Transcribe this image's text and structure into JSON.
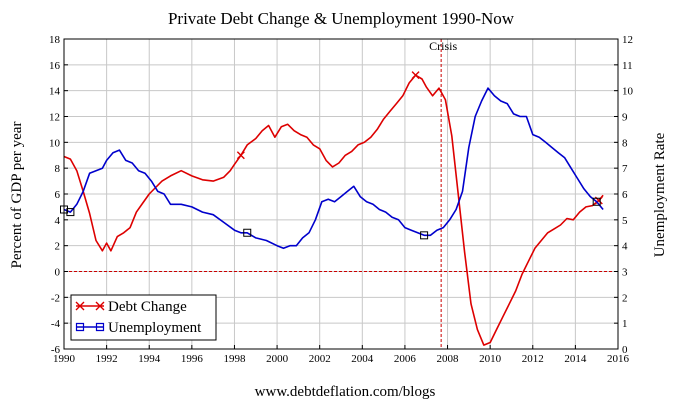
{
  "chart_data": {
    "type": "line",
    "title": "Private Debt Change & Unemployment 1990-Now",
    "footer": "www.debtdeflation.com/blogs",
    "left_axis": {
      "label": "Percent of GDP per year",
      "range": [
        -6,
        18
      ],
      "ticks": [
        "-6",
        "-4",
        "-2",
        "0",
        "2",
        "4",
        "6",
        "8",
        "10",
        "12",
        "14",
        "16",
        "18"
      ]
    },
    "right_axis": {
      "label": "Unemployment Rate",
      "range": [
        0,
        12
      ],
      "ticks": [
        "0",
        "1",
        "2",
        "3",
        "4",
        "5",
        "6",
        "7",
        "8",
        "9",
        "10",
        "11",
        "12"
      ]
    },
    "x_axis": {
      "range": [
        1990,
        2016
      ],
      "ticks": [
        "1990",
        "1992",
        "1994",
        "1996",
        "1998",
        "2000",
        "2002",
        "2004",
        "2006",
        "2008",
        "2010",
        "2012",
        "2014",
        "2016"
      ]
    },
    "grid": true,
    "zero_line_left": 0,
    "annotation": {
      "label": "Crisis",
      "x": 2007.7
    },
    "legend": {
      "placement": "bottom-left",
      "entries": [
        "Debt Change",
        "Unemployment"
      ]
    },
    "series": [
      {
        "name": "Debt Change",
        "axis": "left",
        "color": "#dd0000",
        "marker": "cross",
        "x": [
          1990,
          1990.3,
          1990.6,
          1990.9,
          1991.2,
          1991.5,
          1991.8,
          1992.0,
          1992.2,
          1992.5,
          1992.8,
          1993.1,
          1993.4,
          1993.7,
          1994.0,
          1994.3,
          1994.6,
          1995.0,
          1995.5,
          1996.0,
          1996.5,
          1997.0,
          1997.5,
          1997.8,
          1998.0,
          1998.3,
          1998.6,
          1999.0,
          1999.3,
          1999.6,
          1999.9,
          2000.2,
          2000.5,
          2000.8,
          2001.1,
          2001.4,
          2001.7,
          2002.0,
          2002.3,
          2002.6,
          2002.9,
          2003.2,
          2003.5,
          2003.8,
          2004.1,
          2004.4,
          2004.7,
          2005.0,
          2005.3,
          2005.6,
          2005.9,
          2006.2,
          2006.5,
          2006.8,
          2007.0,
          2007.3,
          2007.6,
          2007.9,
          2008.2,
          2008.5,
          2008.8,
          2009.1,
          2009.4,
          2009.7,
          2010.0,
          2010.3,
          2010.6,
          2010.9,
          2011.2,
          2011.5,
          2011.8,
          2012.1,
          2012.4,
          2012.7,
          2013.0,
          2013.3,
          2013.6,
          2013.9,
          2014.2,
          2014.5,
          2014.8,
          2015.1,
          2015.3
        ],
        "values": [
          8.9,
          8.7,
          7.8,
          6.2,
          4.5,
          2.4,
          1.6,
          2.2,
          1.6,
          2.7,
          3.0,
          3.4,
          4.6,
          5.3,
          6.0,
          6.5,
          7.0,
          7.4,
          7.8,
          7.4,
          7.1,
          7.0,
          7.3,
          7.8,
          8.3,
          9.0,
          9.8,
          10.3,
          10.9,
          11.3,
          10.4,
          11.2,
          11.4,
          10.9,
          10.6,
          10.4,
          9.8,
          9.5,
          8.6,
          8.1,
          8.4,
          9.0,
          9.3,
          9.8,
          10.0,
          10.4,
          11.0,
          11.8,
          12.4,
          13.0,
          13.6,
          14.6,
          15.2,
          14.9,
          14.3,
          13.6,
          14.2,
          13.3,
          10.5,
          6.0,
          1.5,
          -2.5,
          -4.5,
          -5.7,
          -5.5,
          -4.5,
          -3.5,
          -2.5,
          -1.5,
          -0.2,
          0.8,
          1.8,
          2.4,
          3.0,
          3.3,
          3.6,
          4.1,
          4.0,
          4.6,
          5.0,
          5.1,
          5.5,
          5.9
        ]
      },
      {
        "name": "Unemployment",
        "axis": "right",
        "color": "#0000cc",
        "marker": "square",
        "x": [
          1990,
          1990.3,
          1990.6,
          1990.9,
          1991.2,
          1991.5,
          1991.8,
          1992.0,
          1992.3,
          1992.6,
          1992.9,
          1993.2,
          1993.5,
          1993.8,
          1994.1,
          1994.4,
          1994.7,
          1995.0,
          1995.5,
          1996.0,
          1996.5,
          1997.0,
          1997.5,
          1998.0,
          1998.3,
          1998.6,
          1999.0,
          1999.5,
          2000.0,
          2000.3,
          2000.6,
          2000.9,
          2001.2,
          2001.5,
          2001.8,
          2002.1,
          2002.4,
          2002.7,
          2003.0,
          2003.3,
          2003.6,
          2003.9,
          2004.2,
          2004.5,
          2004.8,
          2005.1,
          2005.4,
          2005.7,
          2006.0,
          2006.3,
          2006.6,
          2006.9,
          2007.2,
          2007.5,
          2007.8,
          2008.1,
          2008.4,
          2008.7,
          2009.0,
          2009.3,
          2009.6,
          2009.9,
          2010.2,
          2010.5,
          2010.8,
          2011.1,
          2011.4,
          2011.7,
          2012.0,
          2012.3,
          2012.6,
          2012.9,
          2013.2,
          2013.5,
          2013.8,
          2014.1,
          2014.4,
          2014.7,
          2015.0,
          2015.3
        ],
        "values": [
          5.4,
          5.3,
          5.6,
          6.1,
          6.8,
          6.9,
          7.0,
          7.3,
          7.6,
          7.7,
          7.3,
          7.2,
          6.9,
          6.8,
          6.5,
          6.1,
          6.0,
          5.6,
          5.6,
          5.5,
          5.3,
          5.2,
          4.9,
          4.6,
          4.5,
          4.5,
          4.3,
          4.2,
          4.0,
          3.9,
          4.0,
          4.0,
          4.3,
          4.5,
          5.0,
          5.7,
          5.8,
          5.7,
          5.9,
          6.1,
          6.3,
          5.9,
          5.7,
          5.6,
          5.4,
          5.3,
          5.1,
          5.0,
          4.7,
          4.6,
          4.5,
          4.4,
          4.4,
          4.6,
          4.7,
          5.0,
          5.4,
          6.1,
          7.8,
          9.0,
          9.6,
          10.1,
          9.8,
          9.6,
          9.5,
          9.1,
          9.0,
          9.0,
          8.3,
          8.2,
          8.0,
          7.8,
          7.6,
          7.4,
          7.0,
          6.6,
          6.2,
          5.9,
          5.7,
          5.4
        ]
      }
    ]
  }
}
